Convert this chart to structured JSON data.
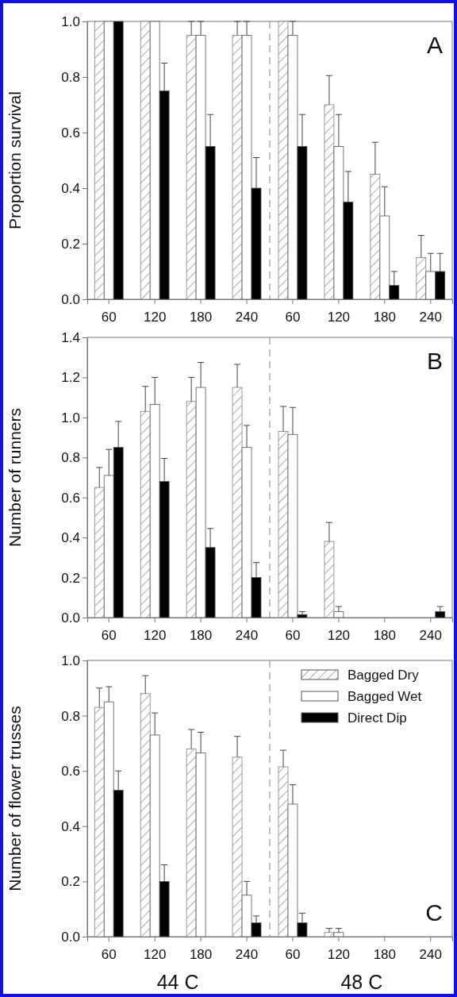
{
  "chart_data": [
    {
      "type": "bar",
      "ylabel": "Proportion survival",
      "categories": [
        "60",
        "120",
        "180",
        "240",
        "60",
        "120",
        "180",
        "240"
      ],
      "ylim": [
        0,
        1.0
      ],
      "yticks": [
        {
          "value": 0,
          "label": "0.0"
        },
        {
          "value": 0.2,
          "label": "0.2"
        },
        {
          "value": 0.4,
          "label": "0.4"
        },
        {
          "value": 0.6,
          "label": "0.6"
        },
        {
          "value": 0.8,
          "label": "0.8"
        },
        {
          "value": 1.0,
          "label": "1.0"
        }
      ],
      "annotations": [
        "A"
      ],
      "series": [
        {
          "color": "#808080",
          "values": [
            1.0,
            1.0,
            0.95,
            0.95,
            1.0,
            0.7,
            0.45,
            0.15
          ],
          "errors": [
            null,
            null,
            [
              0.95,
              1.0
            ],
            [
              0.95,
              1.0
            ],
            null,
            [
              0.7,
              0.805
            ],
            [
              0.45,
              0.565
            ],
            [
              0.15,
              0.23
            ]
          ]
        },
        {
          "color": "#ffffff",
          "values": [
            1.0,
            1.0,
            0.95,
            0.95,
            0.95,
            0.55,
            0.3,
            0.1
          ],
          "errors": [
            null,
            null,
            [
              0.95,
              1.0
            ],
            [
              0.95,
              1.0
            ],
            [
              0.95,
              1.0
            ],
            [
              0.55,
              0.665
            ],
            [
              0.3,
              0.405
            ],
            [
              0.1,
              0.165
            ]
          ]
        },
        {
          "color": "#000000",
          "values": [
            1.0,
            0.75,
            0.55,
            0.4,
            0.55,
            0.35,
            0.05,
            0.1
          ],
          "errors": [
            null,
            [
              0.75,
              0.85
            ],
            [
              0.55,
              0.665
            ],
            [
              0.4,
              0.51
            ],
            [
              0.55,
              0.665
            ],
            [
              0.35,
              0.46
            ],
            [
              0.05,
              0.1
            ],
            [
              0.1,
              0.165
            ]
          ]
        }
      ]
    },
    {
      "type": "bar",
      "ylabel": "Number of runners",
      "categories": [
        "60",
        "120",
        "180",
        "240",
        "60",
        "120",
        "180",
        "240"
      ],
      "ylim": [
        0,
        1.4
      ],
      "yticks": [
        {
          "value": 0,
          "label": "0.0"
        },
        {
          "value": 0.2,
          "label": "0.2"
        },
        {
          "value": 0.4,
          "label": "0.4"
        },
        {
          "value": 0.6,
          "label": "0.6"
        },
        {
          "value": 0.8,
          "label": "0.8"
        },
        {
          "value": 1.0,
          "label": "1.0"
        },
        {
          "value": 1.2,
          "label": "1.2"
        },
        {
          "value": 1.4,
          "label": "1.4"
        }
      ],
      "annotations": [
        "B"
      ],
      "series": [
        {
          "color": "#808080",
          "values": [
            0.65,
            1.03,
            1.08,
            1.15,
            0.93,
            0.38,
            0,
            0
          ],
          "errors": [
            [
              0.65,
              0.75
            ],
            [
              1.03,
              1.155
            ],
            [
              1.08,
              1.2
            ],
            [
              1.15,
              1.265
            ],
            [
              0.93,
              1.055
            ],
            [
              0.38,
              0.475
            ],
            null,
            null
          ]
        },
        {
          "color": "#ffffff",
          "values": [
            0.71,
            1.065,
            1.15,
            0.85,
            0.915,
            0.03,
            0,
            0
          ],
          "errors": [
            [
              0.71,
              0.84
            ],
            [
              1.065,
              1.2
            ],
            [
              1.15,
              1.275
            ],
            [
              0.85,
              0.96
            ],
            [
              0.915,
              1.05
            ],
            [
              0.03,
              0.055
            ],
            null,
            null
          ]
        },
        {
          "color": "#000000",
          "values": [
            0.85,
            0.68,
            0.35,
            0.2,
            0.015,
            0,
            0,
            0.03
          ],
          "errors": [
            [
              0.85,
              0.98
            ],
            [
              0.68,
              0.795
            ],
            [
              0.35,
              0.445
            ],
            [
              0.2,
              0.275
            ],
            [
              0.015,
              0.03
            ],
            null,
            null,
            [
              0.03,
              0.055
            ]
          ]
        }
      ]
    },
    {
      "type": "bar",
      "ylabel": "Number of flower trusses",
      "categories": [
        "60",
        "120",
        "180",
        "240",
        "60",
        "120",
        "180",
        "240"
      ],
      "ylim": [
        0,
        1.0
      ],
      "yticks": [
        {
          "value": 0,
          "label": "0.0"
        },
        {
          "value": 0.2,
          "label": "0.2"
        },
        {
          "value": 0.4,
          "label": "0.4"
        },
        {
          "value": 0.6,
          "label": "0.6"
        },
        {
          "value": 0.8,
          "label": "0.8"
        },
        {
          "value": 1.0,
          "label": "1.0"
        }
      ],
      "annotations": [
        "C",
        "44 C",
        "48 C"
      ],
      "legend": "top right",
      "series": [
        {
          "name": "Bagged Dry",
          "color": "#808080",
          "values": [
            0.83,
            0.88,
            0.68,
            0.65,
            0.615,
            0.015,
            0,
            0
          ],
          "errors": [
            [
              0.83,
              0.9
            ],
            [
              0.88,
              0.945
            ],
            [
              0.68,
              0.75
            ],
            [
              0.65,
              0.725
            ],
            [
              0.615,
              0.675
            ],
            [
              0.015,
              0.03
            ],
            null,
            null
          ]
        },
        {
          "name": "Bagged Wet",
          "color": "#ffffff",
          "values": [
            0.85,
            0.73,
            0.665,
            0.15,
            0.48,
            0.015,
            0,
            0
          ],
          "errors": [
            [
              0.85,
              0.905
            ],
            [
              0.73,
              0.81
            ],
            [
              0.665,
              0.74
            ],
            [
              0.15,
              0.2
            ],
            [
              0.48,
              0.55
            ],
            [
              0.015,
              0.03
            ],
            null,
            null
          ]
        },
        {
          "name": "Direct Dip",
          "color": "#000000",
          "values": [
            0.53,
            0.2,
            0,
            0.05,
            0.05,
            0,
            0,
            0
          ],
          "errors": [
            [
              0.53,
              0.6
            ],
            [
              0.2,
              0.26
            ],
            null,
            [
              0.05,
              0.075
            ],
            [
              0.05,
              0.085
            ],
            null,
            null,
            null
          ]
        }
      ]
    }
  ]
}
